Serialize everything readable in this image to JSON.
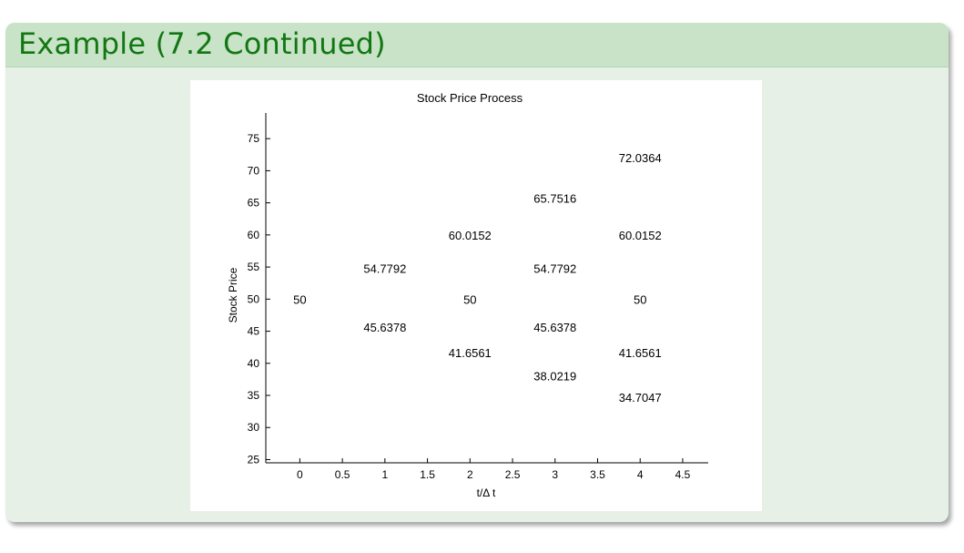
{
  "slide": {
    "title": "Example (7.2 Continued)"
  },
  "chart_data": {
    "type": "scatter",
    "title": "Stock Price Process",
    "xlabel": "t/Δ t",
    "ylabel": "Stock Price",
    "xlim": [
      -0.4,
      4.8
    ],
    "ylim": [
      24.5,
      79
    ],
    "xticks": [
      {
        "v": 0,
        "label": "0"
      },
      {
        "v": 0.5,
        "label": "0.5"
      },
      {
        "v": 1,
        "label": "1"
      },
      {
        "v": 1.5,
        "label": "1.5"
      },
      {
        "v": 2,
        "label": "2"
      },
      {
        "v": 2.5,
        "label": "2.5"
      },
      {
        "v": 3,
        "label": "3"
      },
      {
        "v": 3.5,
        "label": "3.5"
      },
      {
        "v": 4,
        "label": "4"
      },
      {
        "v": 4.5,
        "label": "4.5"
      }
    ],
    "yticks": [
      {
        "v": 25,
        "label": "25"
      },
      {
        "v": 30,
        "label": "30"
      },
      {
        "v": 35,
        "label": "35"
      },
      {
        "v": 40,
        "label": "40"
      },
      {
        "v": 45,
        "label": "45"
      },
      {
        "v": 50,
        "label": "50"
      },
      {
        "v": 55,
        "label": "55"
      },
      {
        "v": 60,
        "label": "60"
      },
      {
        "v": 65,
        "label": "65"
      },
      {
        "v": 70,
        "label": "70"
      },
      {
        "v": 75,
        "label": "75"
      }
    ],
    "points": [
      {
        "x": 0,
        "y": 50,
        "label": "50"
      },
      {
        "x": 1,
        "y": 54.7792,
        "label": "54.7792"
      },
      {
        "x": 1,
        "y": 45.6378,
        "label": "45.6378"
      },
      {
        "x": 2,
        "y": 60.0152,
        "label": "60.0152"
      },
      {
        "x": 2,
        "y": 50,
        "label": "50"
      },
      {
        "x": 2,
        "y": 41.6561,
        "label": "41.6561"
      },
      {
        "x": 3,
        "y": 65.7516,
        "label": "65.7516"
      },
      {
        "x": 3,
        "y": 54.7792,
        "label": "54.7792"
      },
      {
        "x": 3,
        "y": 45.6378,
        "label": "45.6378"
      },
      {
        "x": 3,
        "y": 38.0219,
        "label": "38.0219"
      },
      {
        "x": 4,
        "y": 72.0364,
        "label": "72.0364"
      },
      {
        "x": 4,
        "y": 60.0152,
        "label": "60.0152"
      },
      {
        "x": 4,
        "y": 50,
        "label": "50"
      },
      {
        "x": 4,
        "y": 41.6561,
        "label": "41.6561"
      },
      {
        "x": 4,
        "y": 34.7047,
        "label": "34.7047"
      }
    ],
    "grid": false,
    "box": "left-bottom"
  }
}
